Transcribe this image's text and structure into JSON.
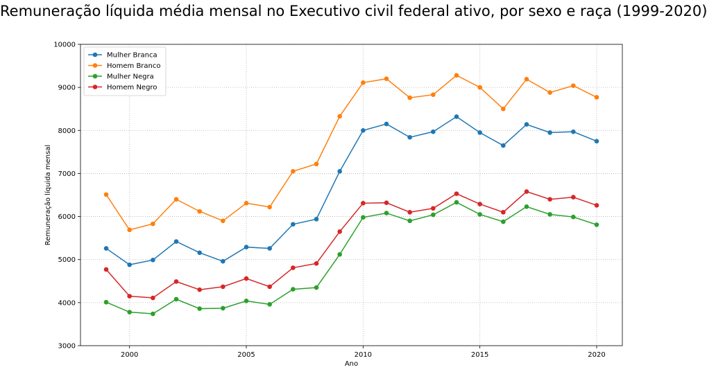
{
  "chart_data": {
    "type": "line",
    "title": "Remuneração líquida média mensal no Executivo civil federal ativo, por sexo e raça (1999-2020)",
    "xlabel": "Ano",
    "ylabel": "Remuneração líquida mensal",
    "xlim": [
      1997.9,
      2021.1
    ],
    "ylim": [
      3000,
      10000
    ],
    "xticks": [
      2000,
      2005,
      2010,
      2015,
      2020
    ],
    "yticks": [
      3000,
      4000,
      5000,
      6000,
      7000,
      8000,
      9000,
      10000
    ],
    "grid": true,
    "legend_position": "top-left",
    "x": [
      1999,
      2000,
      2001,
      2002,
      2003,
      2004,
      2005,
      2006,
      2007,
      2008,
      2009,
      2010,
      2011,
      2012,
      2013,
      2014,
      2015,
      2016,
      2017,
      2018,
      2019,
      2020
    ],
    "series": [
      {
        "name": "Mulher Branca",
        "color": "#1f77b4",
        "values": [
          5260,
          4880,
          4990,
          5420,
          5160,
          4960,
          5290,
          5260,
          5820,
          5940,
          7050,
          8000,
          8150,
          7840,
          7970,
          8320,
          7950,
          7650,
          8140,
          7950,
          7970,
          7750
        ]
      },
      {
        "name": "Homem Branco",
        "color": "#ff7f0e",
        "values": [
          6510,
          5690,
          5830,
          6400,
          6120,
          5900,
          6310,
          6220,
          7050,
          7220,
          8330,
          9110,
          9200,
          8760,
          8830,
          9280,
          9000,
          8500,
          9190,
          8880,
          9040,
          8770
        ]
      },
      {
        "name": "Mulher Negra",
        "color": "#2ca02c",
        "values": [
          4010,
          3780,
          3740,
          4080,
          3860,
          3870,
          4040,
          3960,
          4310,
          4350,
          5120,
          5980,
          6080,
          5900,
          6040,
          6330,
          6050,
          5880,
          6230,
          6050,
          5990,
          5810
        ]
      },
      {
        "name": "Homem Negro",
        "color": "#d62728",
        "values": [
          4770,
          4150,
          4110,
          4490,
          4300,
          4370,
          4560,
          4370,
          4810,
          4910,
          5650,
          6310,
          6320,
          6100,
          6190,
          6530,
          6290,
          6100,
          6580,
          6400,
          6450,
          6260
        ]
      }
    ]
  }
}
